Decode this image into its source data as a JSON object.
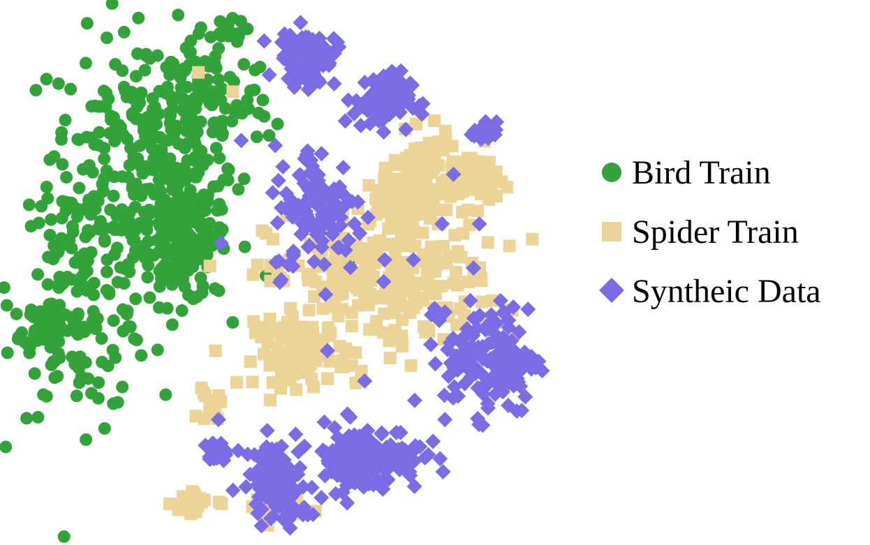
{
  "chart_data": {
    "type": "scatter",
    "title": "",
    "xlabel": "",
    "ylabel": "",
    "grid": false,
    "axes_visible": false,
    "legend_position": "right",
    "series": [
      {
        "name": "Bird Train",
        "marker": "circle",
        "color": "#34a23a",
        "clusters": [
          {
            "center": [
              -92,
              50
            ],
            "spread": [
              16,
              22
            ],
            "count": 220
          },
          {
            "center": [
              -78,
              20
            ],
            "spread": [
              8,
              12
            ],
            "count": 200
          },
          {
            "center": [
              -112,
              0
            ],
            "spread": [
              12,
              22
            ],
            "count": 160
          },
          {
            "center": [
              -70,
              70
            ],
            "spread": [
              12,
              14
            ],
            "count": 110
          },
          {
            "center": [
              -125,
              -12
            ],
            "spread": [
              4,
              4
            ],
            "count": 60
          },
          {
            "center": [
              -62,
              95
            ],
            "spread": [
              3,
              2
            ],
            "count": 18
          }
        ],
        "points": [
          [
            -20,
            13
          ],
          [
            -19,
            10
          ]
        ]
      },
      {
        "name": "Spider Train",
        "marker": "square",
        "color": "#ecd398",
        "clusters": [
          {
            "center": [
              -8,
              5
            ],
            "spread": [
              20,
              12
            ],
            "count": 260
          },
          {
            "center": [
              -36,
              -22
            ],
            "spread": [
              8,
              6
            ],
            "count": 90
          },
          {
            "center": [
              -2,
              32
            ],
            "spread": [
              6,
              6
            ],
            "count": 60
          },
          {
            "center": [
              22,
              42
            ],
            "spread": [
              5,
              5
            ],
            "count": 70
          },
          {
            "center": [
              6,
              45
            ],
            "spread": [
              5,
              6
            ],
            "count": 60
          },
          {
            "center": [
              -46,
              -78
            ],
            "spread": [
              5,
              3
            ],
            "count": 30
          },
          {
            "center": [
              -73,
              -76
            ],
            "spread": [
              4,
              3
            ],
            "count": 25
          },
          {
            "center": [
              -68,
              -42
            ],
            "spread": [
              2,
              3
            ],
            "count": 14
          }
        ],
        "points": [
          [
            -72,
            80
          ],
          [
            -60,
            73
          ]
        ]
      },
      {
        "name": "Syntheic Data",
        "marker": "diamond",
        "color": "#7b6be4",
        "clusters": [
          {
            "center": [
              -34,
              85
            ],
            "spread": [
              5,
              5
            ],
            "count": 90
          },
          {
            "center": [
              -8,
              70
            ],
            "spread": [
              5,
              5
            ],
            "count": 80
          },
          {
            "center": [
              28,
              58
            ],
            "spread": [
              2,
              2
            ],
            "count": 20
          },
          {
            "center": [
              30,
              -24
            ],
            "spread": [
              8,
              10
            ],
            "count": 150
          },
          {
            "center": [
              -30,
              30
            ],
            "spread": [
              8,
              12
            ],
            "count": 110
          },
          {
            "center": [
              -14,
              -60
            ],
            "spread": [
              10,
              6
            ],
            "count": 140
          },
          {
            "center": [
              -46,
              -65
            ],
            "spread": [
              5,
              5
            ],
            "count": 70
          },
          {
            "center": [
              -42,
              -78
            ],
            "spread": [
              4,
              4
            ],
            "count": 40
          },
          {
            "center": [
              -66,
              -58
            ],
            "spread": [
              2,
              2
            ],
            "count": 18
          }
        ],
        "points": [
          [
            -64,
            18
          ],
          [
            -7,
            12
          ],
          [
            3,
            12
          ],
          [
            24,
            9
          ],
          [
            12,
            -10
          ],
          [
            14,
            -7
          ],
          [
            18,
            -23
          ],
          [
            -27,
            -21
          ],
          [
            -14,
            -32
          ],
          [
            14,
            -46
          ],
          [
            -13,
            -50
          ],
          [
            -20,
            -44
          ],
          [
            43,
            -6
          ],
          [
            17,
            43
          ],
          [
            26,
            25
          ],
          [
            13,
            25
          ],
          [
            -65,
            -46
          ],
          [
            -48,
            -50
          ]
        ]
      }
    ]
  },
  "legend": {
    "items": [
      {
        "label": "Bird Train",
        "color": "#34a23a",
        "marker": "circle"
      },
      {
        "label": "Spider Train",
        "color": "#ecd398",
        "marker": "square"
      },
      {
        "label": "Syntheic Data",
        "color": "#7b6be4",
        "marker": "diamond"
      }
    ]
  }
}
